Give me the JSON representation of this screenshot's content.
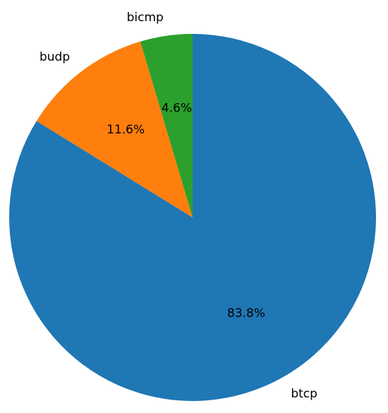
{
  "chart_data": {
    "type": "pie",
    "start_angle_deg": 90,
    "direction": "clockwise",
    "slices": [
      {
        "label": "btcp",
        "value": 83.8,
        "pct_label": "83.8%",
        "color": "#1f77b4"
      },
      {
        "label": "budp",
        "value": 11.6,
        "pct_label": "11.6%",
        "color": "#ff7f0e"
      },
      {
        "label": "bicmp",
        "value": 4.6,
        "pct_label": "4.6%",
        "color": "#2ca02c"
      }
    ],
    "legend": "none",
    "grid": false
  }
}
